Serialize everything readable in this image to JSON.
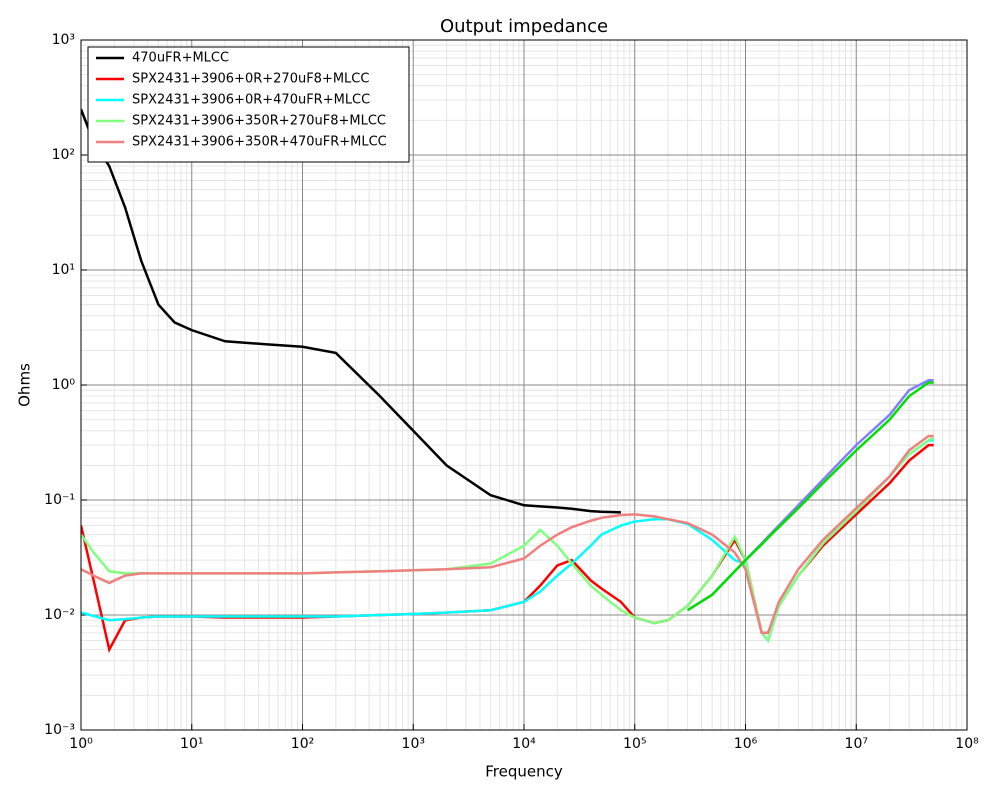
{
  "chart_data": {
    "type": "line",
    "title": "Output impedance",
    "x_label": "Frequency",
    "y_label": "Ohms",
    "xscale": "log",
    "yscale": "log",
    "grid": true,
    "legend": "upper left",
    "xlim": [
      1,
      100000000
    ],
    "ylim": [
      0.001,
      1000
    ],
    "xticks": [
      {
        "value": 1,
        "label": "10⁰"
      },
      {
        "value": 10,
        "label": "10¹"
      },
      {
        "value": 100,
        "label": "10²"
      },
      {
        "value": 1000,
        "label": "10³"
      },
      {
        "value": 10000,
        "label": "10⁴"
      },
      {
        "value": 100000,
        "label": "10⁵"
      },
      {
        "value": 1000000,
        "label": "10⁶"
      },
      {
        "value": 10000000,
        "label": "10⁷"
      },
      {
        "value": 100000000,
        "label": "10⁸"
      }
    ],
    "yticks": [
      {
        "value": 0.001,
        "label": "10⁻³"
      },
      {
        "value": 0.01,
        "label": "10⁻²"
      },
      {
        "value": 0.1,
        "label": "10⁻¹"
      },
      {
        "value": 1,
        "label": "10⁰"
      },
      {
        "value": 10,
        "label": "10¹"
      },
      {
        "value": 100,
        "label": "10²"
      },
      {
        "value": 1000,
        "label": "10³"
      }
    ],
    "x": [
      1,
      1.3,
      1.8,
      2.5,
      3.5,
      5,
      7,
      10,
      20,
      50,
      100,
      200,
      500,
      1000,
      2000,
      5000,
      10000,
      14000,
      20000,
      27000,
      40000,
      50000,
      75000,
      100000,
      150000,
      200000,
      300000,
      500000,
      800000,
      1000000,
      1400000,
      1600000,
      2000000,
      3000000,
      5000000,
      10000000,
      20000000,
      30000000,
      45000000,
      50000000
    ],
    "series": [
      {
        "name": "470uFR+MLCC",
        "color": "#000000",
        "values": [
          250,
          130,
          80,
          35,
          12,
          5,
          3.5,
          3,
          2.4,
          2.25,
          2.15,
          1.9,
          0.8,
          0.4,
          0.2,
          0.11,
          0.09,
          0.088,
          0.086,
          0.084,
          0.08,
          0.079,
          0.078,
          null,
          null,
          null,
          null,
          null,
          null,
          null,
          null,
          null,
          null,
          null,
          null,
          null,
          null,
          null,
          null,
          null
        ]
      },
      {
        "name": "SPX2431+3906+0R+270uF8+MLCC",
        "color": "#ff0000",
        "values": [
          0.06,
          0.02,
          0.005,
          0.009,
          0.0095,
          0.0097,
          0.0097,
          0.0097,
          0.0095,
          0.0095,
          0.0095,
          0.0097,
          0.01,
          0.0102,
          0.0105,
          0.011,
          0.013,
          0.018,
          0.027,
          0.03,
          0.02,
          0.017,
          0.013,
          0.0095,
          0.0085,
          0.009,
          0.012,
          0.022,
          0.045,
          0.03,
          0.007,
          0.007,
          0.012,
          0.022,
          0.04,
          0.075,
          0.14,
          0.22,
          0.3,
          0.3
        ]
      },
      {
        "name": "SPX2431+3906+0R+470uFR+MLCC",
        "color": "#00ffff",
        "values": [
          0.0105,
          0.0098,
          0.009,
          0.0092,
          0.0095,
          0.0097,
          0.0097,
          0.0097,
          0.0097,
          0.0097,
          0.0097,
          0.0097,
          0.01,
          0.0102,
          0.0105,
          0.011,
          0.013,
          0.016,
          0.022,
          0.028,
          0.04,
          0.05,
          0.06,
          0.065,
          0.068,
          0.068,
          0.062,
          0.045,
          0.03,
          0.028,
          0.007,
          0.006,
          0.012,
          0.022,
          0.042,
          0.08,
          0.16,
          0.25,
          0.33,
          0.33
        ]
      },
      {
        "name": "SPX2431+3906+350R+270uF8+MLCC",
        "color": "#80ff80",
        "values": [
          0.05,
          0.035,
          0.024,
          0.023,
          0.023,
          0.023,
          0.023,
          0.023,
          0.023,
          0.023,
          0.023,
          0.0235,
          0.024,
          0.0245,
          0.025,
          0.028,
          0.04,
          0.055,
          0.04,
          0.028,
          0.018,
          0.015,
          0.011,
          0.0095,
          0.0085,
          0.009,
          0.012,
          0.022,
          0.048,
          0.03,
          0.007,
          0.006,
          0.012,
          0.022,
          0.042,
          0.08,
          0.16,
          0.25,
          0.33,
          0.35
        ]
      },
      {
        "name": "SPX2431+3906+350R+470uFR+MLCC",
        "color": "#f08080",
        "values": [
          0.025,
          0.022,
          0.019,
          0.022,
          0.023,
          0.023,
          0.023,
          0.023,
          0.023,
          0.023,
          0.023,
          0.0235,
          0.024,
          0.0245,
          0.025,
          0.026,
          0.031,
          0.04,
          0.05,
          0.058,
          0.066,
          0.07,
          0.074,
          0.075,
          0.072,
          0.068,
          0.063,
          0.05,
          0.035,
          0.025,
          0.007,
          0.007,
          0.013,
          0.025,
          0.045,
          0.085,
          0.16,
          0.27,
          0.36,
          0.36
        ]
      },
      {
        "color": "#8080ff",
        "values": [
          null,
          null,
          null,
          null,
          null,
          null,
          null,
          null,
          null,
          null,
          null,
          null,
          null,
          null,
          null,
          null,
          null,
          null,
          null,
          null,
          null,
          null,
          null,
          null,
          null,
          null,
          0.011,
          0.015,
          0.024,
          0.03,
          0.042,
          0.048,
          0.06,
          0.09,
          0.15,
          0.3,
          0.55,
          0.9,
          1.1,
          1.1
        ]
      },
      {
        "color": "#00e000",
        "values": [
          null,
          null,
          null,
          null,
          null,
          null,
          null,
          null,
          null,
          null,
          null,
          null,
          null,
          null,
          null,
          null,
          null,
          null,
          null,
          null,
          null,
          null,
          null,
          null,
          null,
          null,
          0.011,
          0.015,
          0.024,
          0.03,
          0.041,
          0.047,
          0.058,
          0.085,
          0.14,
          0.27,
          0.5,
          0.8,
          1.05,
          1.05
        ]
      }
    ]
  }
}
